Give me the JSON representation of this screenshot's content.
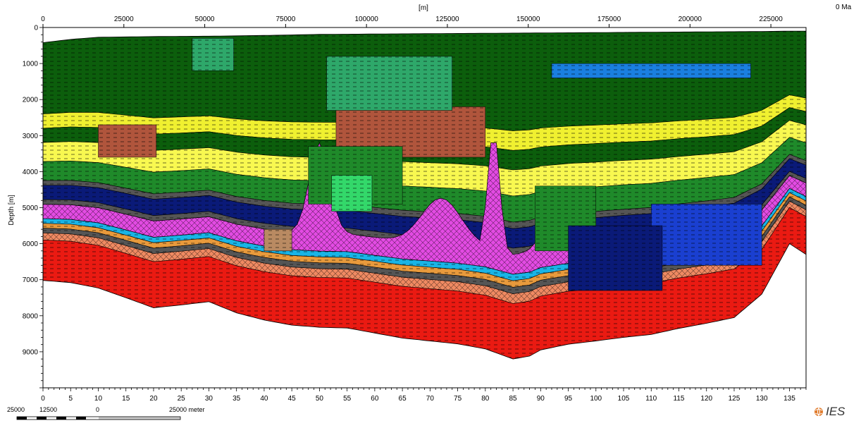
{
  "age_label": "0 Ma",
  "logo_text": "IES",
  "scale_bar": {
    "labels": [
      "25000",
      "12500",
      "0",
      "25000 meter"
    ]
  },
  "chart_data": {
    "type": "area",
    "title": "",
    "top_axis": {
      "label": "[m]",
      "range": [
        0,
        235000
      ],
      "ticks": [
        0,
        25000,
        50000,
        75000,
        100000,
        125000,
        150000,
        175000,
        200000,
        225000
      ]
    },
    "bottom_axis": {
      "label": "",
      "range": [
        0,
        138
      ],
      "ticks": [
        0,
        5,
        10,
        15,
        20,
        25,
        30,
        35,
        40,
        45,
        50,
        55,
        60,
        65,
        70,
        75,
        80,
        85,
        90,
        95,
        100,
        105,
        110,
        115,
        120,
        125,
        130,
        135
      ]
    },
    "y_axis": {
      "label": "Depth [m]",
      "range": [
        0,
        10000
      ],
      "reversed": true,
      "ticks": [
        0,
        1000,
        2000,
        3000,
        4000,
        5000,
        6000,
        7000,
        8000,
        9000
      ]
    },
    "grid": false,
    "colors": {
      "shale_dark_green": "#0c5e0c",
      "mid_green": "#1f8a2a",
      "light_green": "#33d86a",
      "sea_green": "#2ea86a",
      "yellow": "#f0f030",
      "light_yellow": "#f8f850",
      "brown_red": "#b0553c",
      "orange": "#e89a3c",
      "salt_magenta": "#e34be3",
      "navy": "#0a1a78",
      "blue": "#1a3fd0",
      "light_blue": "#1a7fe0",
      "cyan": "#19b4e6",
      "gray": "#555555",
      "tan": "#b98a62",
      "salmon": "#f08a62",
      "red": "#ea1a12"
    },
    "series": [
      {
        "type": "surface",
        "x": [
          0,
          5,
          10,
          20,
          30,
          40,
          50,
          60,
          70,
          80,
          90,
          100,
          110,
          120,
          130,
          135,
          138
        ],
        "values": [
          420,
          330,
          270,
          250,
          240,
          220,
          190,
          180,
          170,
          160,
          150,
          140,
          130,
          120,
          110,
          100,
          100
        ]
      },
      {
        "type": "basement",
        "x": [
          0,
          5,
          10,
          15,
          20,
          25,
          30,
          35,
          40,
          45,
          50,
          55,
          60,
          65,
          70,
          75,
          80,
          85,
          88,
          90,
          95,
          100,
          105,
          110,
          115,
          120,
          125,
          130,
          135,
          138
        ],
        "values": [
          7020,
          7080,
          7230,
          7500,
          7780,
          7700,
          7610,
          7920,
          8120,
          8260,
          8320,
          8340,
          8480,
          8620,
          8700,
          8780,
          8920,
          9200,
          9120,
          8950,
          8790,
          8700,
          8600,
          8520,
          8350,
          8210,
          8050,
          7400,
          6000,
          6300
        ]
      }
    ]
  }
}
